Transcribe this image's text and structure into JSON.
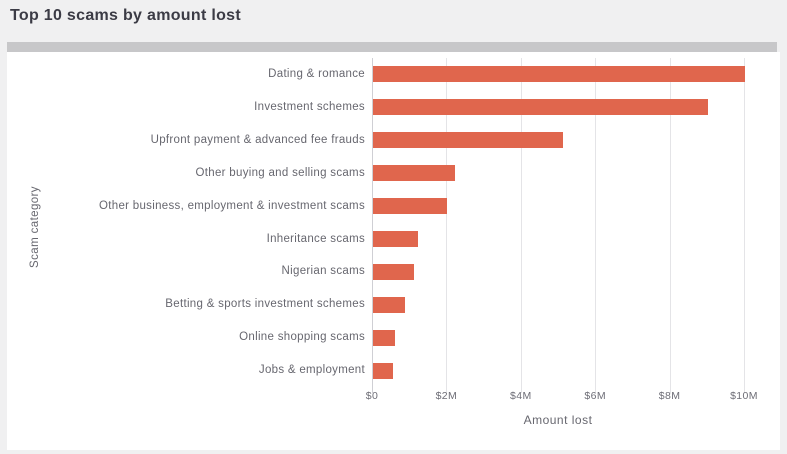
{
  "header": {
    "title": "Top 10 scams by amount lost"
  },
  "chart_data": {
    "type": "bar",
    "orientation": "horizontal",
    "title": "Top 10 scams by amount lost",
    "categories": [
      "Dating & romance",
      "Investment schemes",
      "Upfront payment & advanced fee frauds",
      "Other buying and selling scams",
      "Other business, employment & investment scams",
      "Inheritance scams",
      "Nigerian scams",
      "Betting & sports investment schemes",
      "Online shopping scams",
      "Jobs & employment"
    ],
    "values": [
      10.0,
      9.0,
      5.1,
      2.2,
      2.0,
      1.2,
      1.1,
      0.85,
      0.6,
      0.55
    ],
    "value_unit": "USD millions",
    "xlabel": "Amount lost",
    "ylabel": "Scam category",
    "xlim": [
      0,
      10
    ],
    "xticks": [
      {
        "v": 0,
        "label": "$0"
      },
      {
        "v": 2,
        "label": "$2M"
      },
      {
        "v": 4,
        "label": "$4M"
      },
      {
        "v": 6,
        "label": "$6M"
      },
      {
        "v": 8,
        "label": "$8M"
      },
      {
        "v": 10,
        "label": "$10M"
      }
    ],
    "grid": "vertical",
    "legend": "none",
    "bar_color": "#e0664d"
  },
  "colors": {
    "page_bg": "#f0f0f1",
    "card_bg": "#ffffff",
    "scrollbar_thumb": "#c7c7c9",
    "bar": "#e0664d",
    "gridline": "#e4e4e7",
    "zero_line": "#cfcfd4",
    "title_text": "#3b3b45",
    "label_text": "#67676f",
    "tick_text": "#6d6d76"
  }
}
